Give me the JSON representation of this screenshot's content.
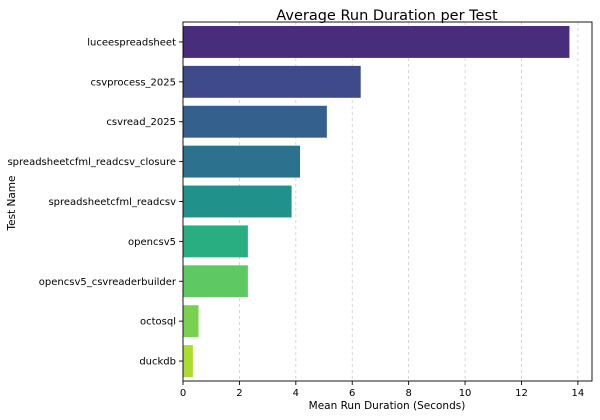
{
  "chart_data": {
    "type": "bar",
    "orientation": "horizontal",
    "title": "Average Run Duration per Test",
    "xlabel": "Mean Run Duration (Seconds)",
    "ylabel": "Test Name",
    "xlim": [
      0,
      14.5
    ],
    "x_ticks": [
      0,
      2,
      4,
      6,
      8,
      10,
      12,
      14
    ],
    "grid": true,
    "categories": [
      "luceespreadsheet",
      "csvprocess_2025",
      "csvread_2025",
      "spreadsheetcfml_readcsv_closure",
      "spreadsheetcfml_readcsv",
      "opencsv5",
      "opencsv5_csvreaderbuilder",
      "octosql",
      "duckdb"
    ],
    "values": [
      13.7,
      6.3,
      5.1,
      4.15,
      3.85,
      2.3,
      2.3,
      0.55,
      0.35
    ],
    "colors": [
      "#472d7b",
      "#3e4a89",
      "#34608d",
      "#2c728e",
      "#21918c",
      "#28ae80",
      "#5ec962",
      "#7ad151",
      "#addc30"
    ]
  }
}
